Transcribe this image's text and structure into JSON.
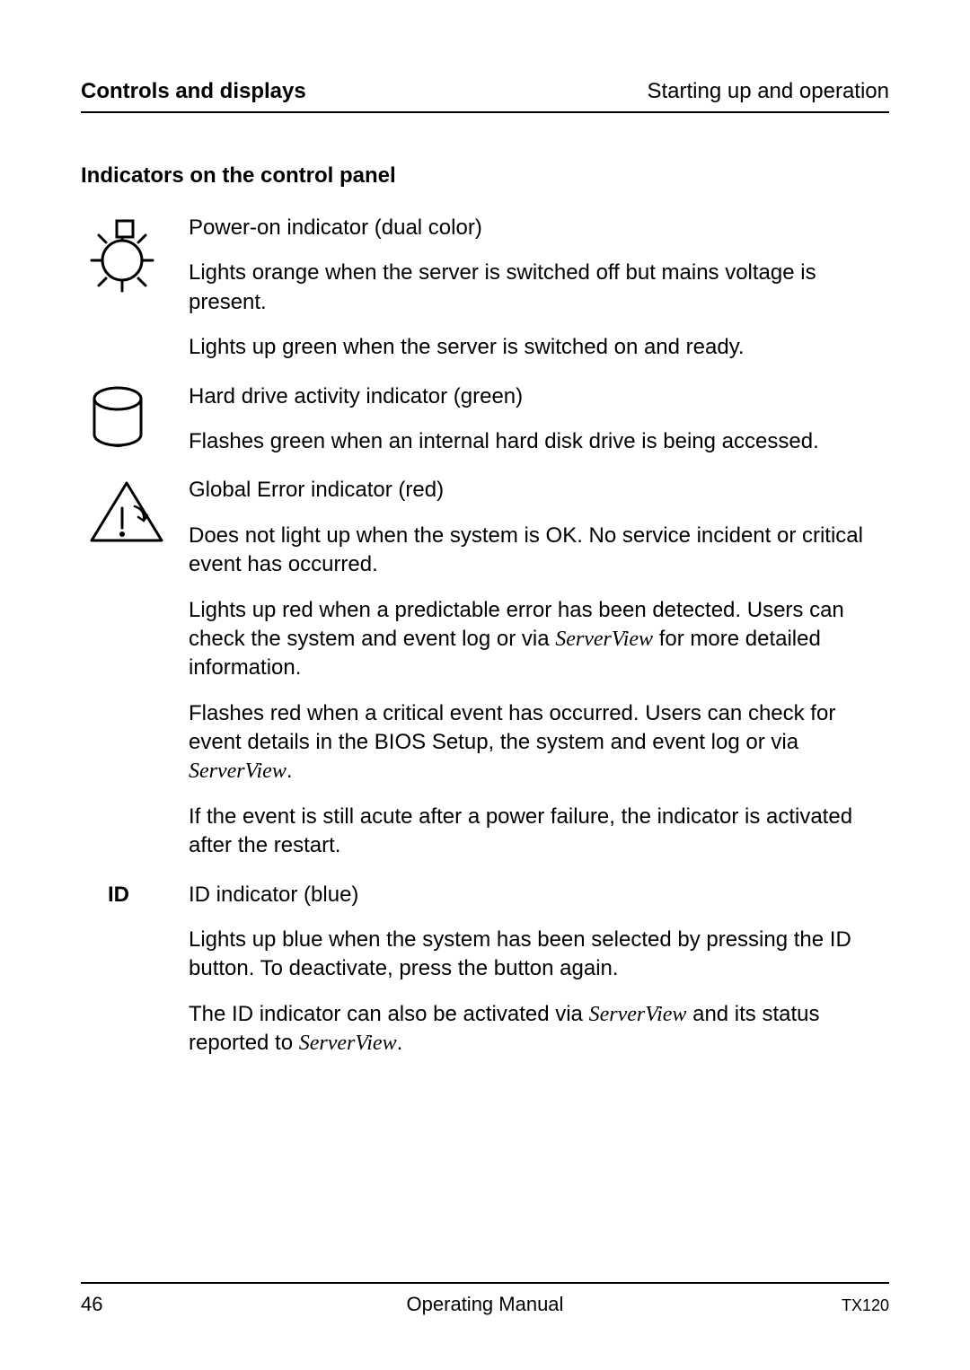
{
  "header": {
    "left": "Controls and displays",
    "right": "Starting up and operation"
  },
  "section_title": "Indicators on the control panel",
  "entries": [
    {
      "icon": "power",
      "paragraphs": [
        {
          "segments": [
            {
              "t": "Power-on indicator (dual color)"
            }
          ]
        },
        {
          "segments": [
            {
              "t": "Lights orange when the server is switched off but mains voltage is present."
            }
          ]
        },
        {
          "segments": [
            {
              "t": "Lights up green when the server is switched on and ready."
            }
          ]
        }
      ]
    },
    {
      "icon": "hdd",
      "paragraphs": [
        {
          "segments": [
            {
              "t": "Hard drive activity indicator (green)"
            }
          ]
        },
        {
          "segments": [
            {
              "t": "Flashes green when an internal hard disk drive is being accessed."
            }
          ]
        }
      ]
    },
    {
      "icon": "warning",
      "paragraphs": [
        {
          "segments": [
            {
              "t": "Global Error indicator (red)"
            }
          ]
        },
        {
          "segments": [
            {
              "t": "Does not light up when the system is OK. No service incident or critical event has occurred."
            }
          ]
        },
        {
          "segments": [
            {
              "t": "Lights up red when a predictable error has been detected. Users can check the system and event log or via "
            },
            {
              "t": "ServerView",
              "italic": true
            },
            {
              "t": " for more detailed information."
            }
          ]
        },
        {
          "segments": [
            {
              "t": "Flashes red when a critical event has occurred. Users can check for event details in the BIOS Setup, the system and event log or via "
            },
            {
              "t": "ServerView",
              "italic": true
            },
            {
              "t": "."
            }
          ]
        },
        {
          "segments": [
            {
              "t": "If the event is still acute after a power failure, the indicator is activated after the restart."
            }
          ]
        }
      ]
    },
    {
      "icon_label": "ID",
      "paragraphs": [
        {
          "segments": [
            {
              "t": "ID indicator (blue)"
            }
          ]
        },
        {
          "segments": [
            {
              "t": "Lights up blue when the system has been selected by pressing the ID button. To deactivate, press the button again."
            }
          ]
        },
        {
          "segments": [
            {
              "t": "The ID indicator can also be activated via "
            },
            {
              "t": "ServerView",
              "italic": true
            },
            {
              "t": " and its status reported to "
            },
            {
              "t": "ServerView",
              "italic": true
            },
            {
              "t": "."
            }
          ]
        }
      ]
    }
  ],
  "footer": {
    "page": "46",
    "center": "Operating Manual",
    "right": "TX120"
  },
  "icons": {
    "power": {
      "stroke": "#000000",
      "stroke_width": 3
    },
    "hdd": {
      "stroke": "#000000",
      "stroke_width": 3
    },
    "warning": {
      "stroke": "#000000",
      "stroke_width": 3
    }
  }
}
